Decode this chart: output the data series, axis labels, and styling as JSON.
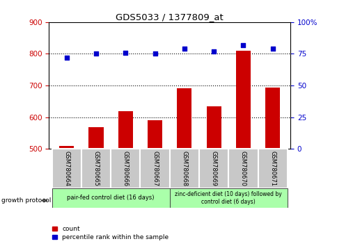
{
  "title": "GDS5033 / 1377809_at",
  "samples": [
    "GSM780664",
    "GSM780665",
    "GSM780666",
    "GSM780667",
    "GSM780668",
    "GSM780669",
    "GSM780670",
    "GSM780671"
  ],
  "count_values": [
    510,
    568,
    618,
    590,
    692,
    635,
    810,
    693
  ],
  "percentile_values": [
    72,
    75,
    76,
    75,
    79,
    77,
    82,
    79
  ],
  "bar_color": "#cc0000",
  "dot_color": "#0000cc",
  "left_ylim": [
    500,
    900
  ],
  "left_yticks": [
    500,
    600,
    700,
    800,
    900
  ],
  "right_ylim": [
    0,
    100
  ],
  "right_yticks": [
    0,
    25,
    50,
    75,
    100
  ],
  "right_yticklabels": [
    "0",
    "25",
    "50",
    "75",
    "100%"
  ],
  "grid_lines": [
    600,
    700,
    800
  ],
  "group1_label": "pair-fed control diet (16 days)",
  "group2_label": "zinc-deficient diet (10 days) followed by\ncontrol diet (6 days)",
  "group1_indices": [
    0,
    1,
    2,
    3
  ],
  "group2_indices": [
    4,
    5,
    6,
    7
  ],
  "group_label_text": "growth protocol",
  "legend_count": "count",
  "legend_percentile": "percentile rank within the sample",
  "bar_width": 0.5,
  "fig_bg": "#ffffff",
  "panel_bg": "#ffffff",
  "left_tick_color": "#cc0000",
  "right_tick_color": "#0000cc",
  "group1_bg": "#aaffaa",
  "group2_bg": "#aaffaa",
  "tick_label_bg": "#c8c8c8"
}
